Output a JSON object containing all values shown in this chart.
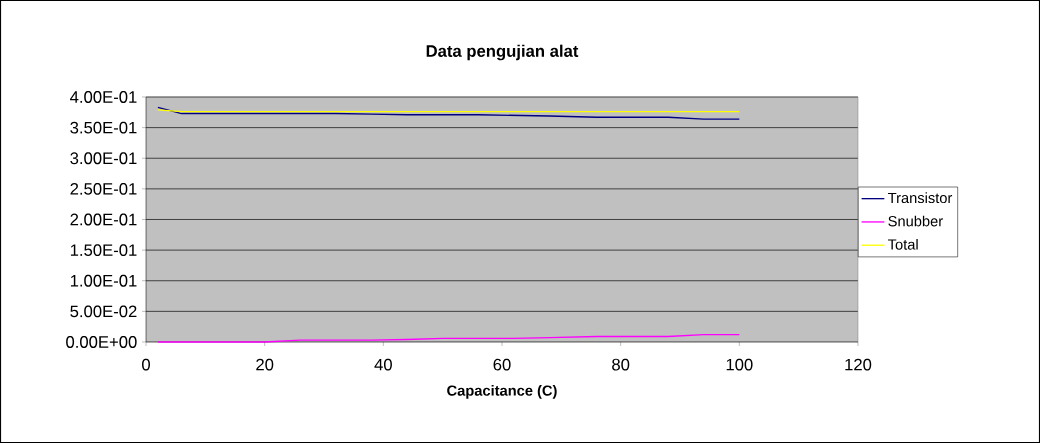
{
  "chart_data": {
    "type": "line",
    "title": "Data pengujian alat",
    "xlabel": "Capacitance (C)",
    "x": [
      2,
      6,
      10,
      14,
      20,
      26,
      32,
      38,
      44,
      50,
      56,
      62,
      68,
      76,
      82,
      88,
      94,
      100
    ],
    "series": [
      {
        "name": "Transistor",
        "color": "#000080",
        "values": [
          0.383,
          0.373,
          0.373,
          0.373,
          0.373,
          0.373,
          0.373,
          0.372,
          0.371,
          0.371,
          0.371,
          0.37,
          0.369,
          0.367,
          0.367,
          0.367,
          0.364,
          0.364
        ]
      },
      {
        "name": "Snubber",
        "color": "#ff00ff",
        "values": [
          0,
          0,
          0,
          0,
          0,
          0.003,
          0.003,
          0.003,
          0.004,
          0.006,
          0.006,
          0.006,
          0.007,
          0.009,
          0.009,
          0.009,
          0.012,
          0.012
        ]
      },
      {
        "name": "Total",
        "color": "#ffff00",
        "values": [
          0.379,
          0.376,
          0.376,
          0.376,
          0.376,
          0.376,
          0.376,
          0.376,
          0.376,
          0.376,
          0.376,
          0.376,
          0.376,
          0.376,
          0.376,
          0.376,
          0.376,
          0.376
        ]
      }
    ],
    "xlim": [
      0,
      120
    ],
    "xticks": [
      0,
      20,
      40,
      60,
      80,
      100,
      120
    ],
    "ylim": [
      0,
      0.4
    ],
    "yticks": [
      {
        "value": 0,
        "label": "0.00E+00"
      },
      {
        "value": 0.05,
        "label": "5.00E-02"
      },
      {
        "value": 0.1,
        "label": "1.00E-01"
      },
      {
        "value": 0.15,
        "label": "1.50E-01"
      },
      {
        "value": 0.2,
        "label": "2.00E-01"
      },
      {
        "value": 0.25,
        "label": "2.50E-01"
      },
      {
        "value": 0.3,
        "label": "3.00E-01"
      },
      {
        "value": 0.35,
        "label": "3.50E-01"
      },
      {
        "value": 0.4,
        "label": "4.00E-01"
      }
    ],
    "grid": "y",
    "legend": "right",
    "marker": "none",
    "line_style": "solid"
  }
}
